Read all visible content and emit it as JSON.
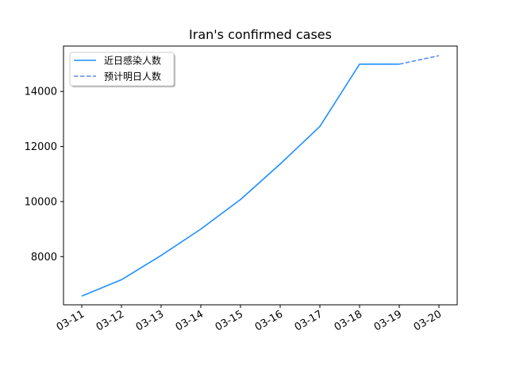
{
  "chart_data": {
    "type": "line",
    "title": "Iran's confirmed cases",
    "xlabel": "",
    "ylabel": "",
    "categories": [
      "03-11",
      "03-12",
      "03-13",
      "03-14",
      "03-15",
      "03-16",
      "03-17",
      "03-18",
      "03-19",
      "03-20"
    ],
    "yticks": [
      8000,
      10000,
      12000,
      14000
    ],
    "ylim": [
      6250,
      15650
    ],
    "grid": false,
    "legend_position": "top-left",
    "series": [
      {
        "name": "近日感染人数",
        "style": "solid",
        "color": "#1e90ff",
        "x": [
          "03-11",
          "03-12",
          "03-13",
          "03-14",
          "03-15",
          "03-16",
          "03-17",
          "03-18",
          "03-19"
        ],
        "values": [
          6566,
          7161,
          8042,
          9000,
          10075,
          11364,
          12729,
          14991,
          14991
        ]
      },
      {
        "name": "预计明日人数",
        "style": "dashed",
        "color": "#5b8cf0",
        "x": [
          "03-19",
          "03-20"
        ],
        "values": [
          14991,
          15300
        ]
      }
    ]
  }
}
